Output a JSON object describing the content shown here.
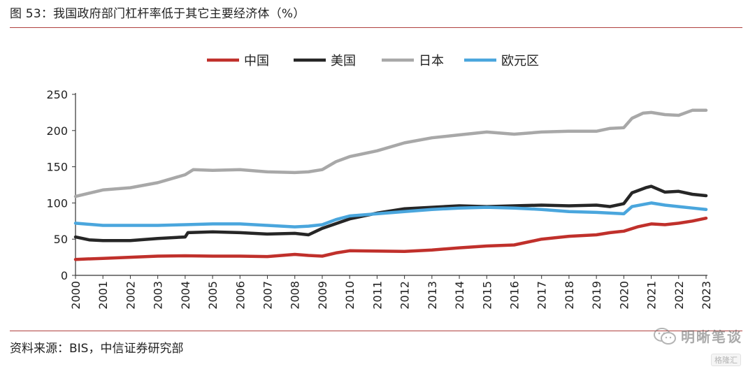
{
  "figure": {
    "title": "图 53：我国政府部门杠杆率低于其它主要经济体（%）",
    "source": "资料来源：BIS，中信证券研究部",
    "watermark": "明晰笔谈",
    "badge": "格隆汇"
  },
  "chart_data": {
    "type": "line",
    "title": "",
    "xlabel": "",
    "ylabel": "",
    "ylim": [
      0,
      250
    ],
    "xlim": [
      2000,
      2023
    ],
    "y_ticks": [
      0,
      50,
      100,
      150,
      200,
      250
    ],
    "x_ticks": [
      "2000",
      "2001",
      "2002",
      "2003",
      "2004",
      "2005",
      "2006",
      "2007",
      "2008",
      "2009",
      "2010",
      "2011",
      "2012",
      "2013",
      "2014",
      "2015",
      "2016",
      "2017",
      "2018",
      "2019",
      "2020",
      "2021",
      "2022",
      "2023"
    ],
    "grid": false,
    "legend_position": "top",
    "series": [
      {
        "name": "中国",
        "color": "#c0302b",
        "x": [
          2000,
          2001,
          2002,
          2003,
          2004,
          2005,
          2006,
          2007,
          2008,
          2008.5,
          2009,
          2009.5,
          2010,
          2011,
          2012,
          2013,
          2014,
          2015,
          2016,
          2017,
          2018,
          2019,
          2019.5,
          2020,
          2020.5,
          2021,
          2021.5,
          2022,
          2022.5,
          2023
        ],
        "values": [
          22,
          23.5,
          25,
          26.5,
          27,
          26.5,
          26.5,
          26,
          29,
          27.5,
          26.5,
          31,
          34,
          33.5,
          33,
          35,
          38,
          40.5,
          42,
          50,
          54,
          56,
          59,
          61,
          67,
          71,
          70,
          72,
          75,
          79
        ]
      },
      {
        "name": "美国",
        "color": "#262626",
        "x": [
          2000,
          2000.5,
          2001,
          2002,
          2003,
          2004,
          2004.1,
          2005,
          2006,
          2007,
          2008,
          2008.5,
          2009,
          2010,
          2011,
          2012,
          2013,
          2014,
          2015,
          2016,
          2017,
          2018,
          2019,
          2019.5,
          2020,
          2020.3,
          2020.8,
          2021,
          2021.5,
          2022,
          2022.5,
          2023
        ],
        "values": [
          53,
          49,
          48,
          48,
          51,
          53,
          59,
          60,
          59,
          57,
          58,
          56,
          65,
          78,
          86,
          92,
          94,
          96,
          95,
          96,
          97,
          96,
          97,
          95,
          99,
          114,
          121,
          123,
          115,
          116,
          112,
          110
        ]
      },
      {
        "name": "日本",
        "color": "#a8a8a8",
        "x": [
          2000,
          2001,
          2002,
          2003,
          2004,
          2004.3,
          2005,
          2006,
          2007,
          2008,
          2008.5,
          2009,
          2009.5,
          2010,
          2011,
          2012,
          2013,
          2014,
          2015,
          2016,
          2017,
          2018,
          2019,
          2019.5,
          2020,
          2020.3,
          2020.7,
          2021,
          2021.5,
          2022,
          2022.5,
          2023
        ],
        "values": [
          109,
          118,
          121,
          128,
          139,
          146,
          145,
          146,
          143,
          142,
          143,
          146,
          157,
          164,
          172,
          183,
          190,
          194,
          198,
          195,
          198,
          199,
          199,
          203,
          204,
          217,
          224,
          225,
          222,
          221,
          228,
          228
        ]
      },
      {
        "name": "欧元区",
        "color": "#4aa6dd",
        "x": [
          2000,
          2001,
          2002,
          2003,
          2004,
          2005,
          2006,
          2007,
          2008,
          2008.5,
          2009,
          2009.5,
          2010,
          2011,
          2012,
          2013,
          2014,
          2015,
          2016,
          2017,
          2018,
          2019,
          2019.5,
          2020,
          2020.3,
          2021,
          2021.5,
          2022,
          2022.5,
          2023
        ],
        "values": [
          72,
          69,
          69,
          69,
          70,
          71,
          71,
          69,
          67,
          68,
          70,
          77,
          82,
          85,
          88,
          91,
          93,
          94,
          93,
          91,
          88,
          87,
          86,
          85,
          95,
          100,
          97,
          95,
          93,
          91
        ]
      }
    ]
  }
}
